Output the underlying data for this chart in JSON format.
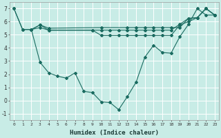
{
  "xlabel": "Humidex (Indice chaleur)",
  "background_color": "#c8ece6",
  "grid_color": "#ffffff",
  "line_color": "#1a6b60",
  "xlim": [
    -0.5,
    23.5
  ],
  "ylim": [
    -1.5,
    7.5
  ],
  "yticks": [
    -1,
    0,
    1,
    2,
    3,
    4,
    5,
    6,
    7
  ],
  "xticks": [
    0,
    1,
    2,
    3,
    4,
    5,
    6,
    7,
    8,
    9,
    10,
    11,
    12,
    13,
    14,
    15,
    16,
    17,
    18,
    19,
    20,
    21,
    22,
    23
  ],
  "curve_x": [
    0,
    1,
    2,
    3,
    4,
    5,
    6,
    7,
    8,
    9,
    10,
    11,
    12,
    13,
    14,
    15,
    16,
    17,
    18,
    19,
    20,
    21,
    22,
    23
  ],
  "curve_y": [
    7.0,
    5.4,
    5.4,
    2.9,
    2.1,
    1.85,
    1.7,
    2.1,
    0.7,
    0.6,
    -0.1,
    -0.15,
    -0.7,
    0.3,
    1.4,
    3.3,
    4.2,
    3.65,
    3.6,
    4.85,
    5.8,
    7.0,
    6.5,
    6.5
  ],
  "flat1_x": [
    0,
    1,
    2,
    3,
    4,
    10,
    13,
    14,
    15,
    16,
    17,
    18,
    19,
    20,
    21,
    22,
    23
  ],
  "flat1_y": [
    7.0,
    5.4,
    5.4,
    5.75,
    5.5,
    5.55,
    5.55,
    5.55,
    5.55,
    5.55,
    5.55,
    5.55,
    5.55,
    6.25,
    6.3,
    7.0,
    6.5
  ],
  "flat2_x": [
    2,
    3,
    4,
    9,
    10,
    11,
    12,
    13,
    14,
    15,
    16,
    17,
    18,
    19,
    20,
    21,
    22,
    23
  ],
  "flat2_y": [
    5.4,
    5.75,
    5.35,
    5.35,
    5.35,
    5.35,
    5.35,
    5.35,
    5.35,
    5.35,
    5.35,
    5.35,
    5.35,
    5.8,
    6.25,
    6.3,
    7.0,
    6.5
  ],
  "flat3_x": [
    2,
    3,
    4,
    9,
    10,
    11,
    12,
    13,
    14,
    15,
    16,
    17,
    18,
    19,
    20,
    21,
    22,
    23
  ],
  "flat3_y": [
    5.4,
    5.55,
    5.35,
    5.35,
    4.95,
    4.95,
    4.95,
    4.95,
    4.95,
    4.95,
    4.95,
    4.95,
    4.95,
    5.75,
    6.0,
    6.3,
    7.0,
    6.5
  ],
  "figsize": [
    3.2,
    2.0
  ],
  "dpi": 100
}
